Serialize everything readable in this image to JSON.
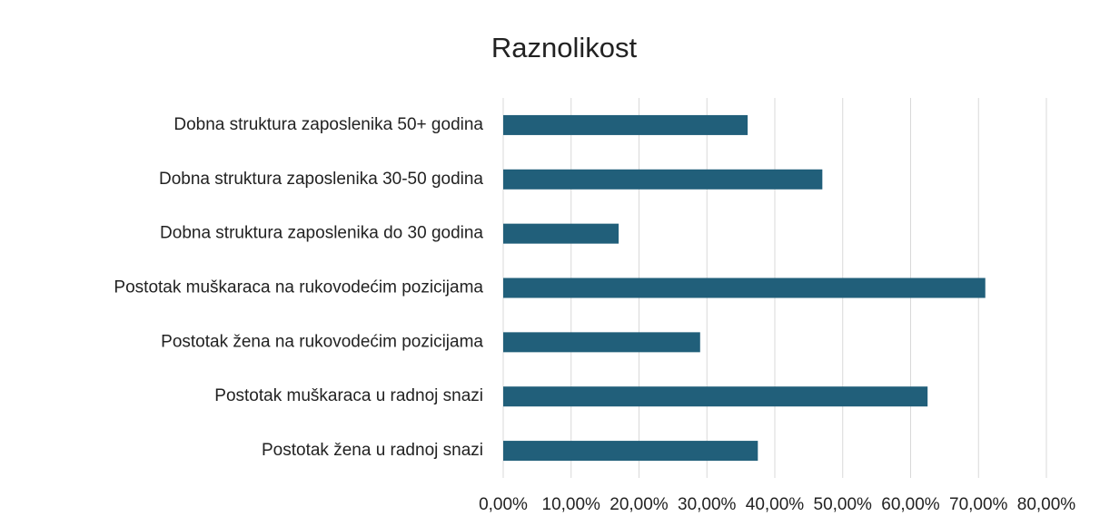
{
  "chart_data": {
    "type": "bar",
    "orientation": "horizontal",
    "title": "Raznolikost",
    "categories": [
      "Dobna struktura zaposlenika 50+ godina",
      "Dobna struktura zaposlenika 30-50 godina",
      "Dobna struktura zaposlenika do 30 godina",
      "Postotak muškaraca na rukovodećim pozicijama",
      "Postotak žena na rukovodećim pozicijama",
      "Postotak muškaraca u radnoj snazi",
      "Postotak žena u radnoj snazi"
    ],
    "values": [
      36,
      47,
      17,
      71,
      29,
      62.5,
      37.5
    ],
    "color": "#215f7a",
    "xlim": [
      0,
      80
    ],
    "xticks": [
      {
        "value": 0,
        "label": "0,00%"
      },
      {
        "value": 10,
        "label": "10,00%"
      },
      {
        "value": 20,
        "label": "20,00%"
      },
      {
        "value": 30,
        "label": "30,00%"
      },
      {
        "value": 40,
        "label": "40,00%"
      },
      {
        "value": 50,
        "label": "50,00%"
      },
      {
        "value": 60,
        "label": "60,00%"
      },
      {
        "value": 70,
        "label": "70,00%"
      },
      {
        "value": 80,
        "label": "80,00%"
      }
    ],
    "grid": true
  }
}
